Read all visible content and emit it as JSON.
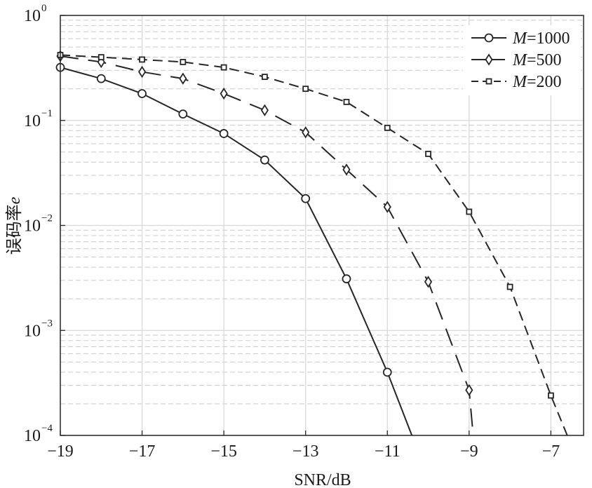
{
  "chart_data": {
    "type": "line",
    "xlabel": "SNR/dB",
    "ylabel_text": "误码率",
    "ylabel_symbol": "e",
    "xlim": [
      -19,
      -6.2
    ],
    "ylim": [
      0.0001,
      1
    ],
    "yscale": "log",
    "grid": true,
    "x_ticks": [
      -19,
      -17,
      -15,
      -13,
      -11,
      -9,
      -7
    ],
    "x_tick_labels": [
      "−19",
      "−17",
      "−15",
      "−13",
      "−11",
      "−9",
      "−7"
    ],
    "y_ticks": [
      1,
      0.1,
      0.01,
      0.001,
      0.0001
    ],
    "y_tick_bases": [
      "10",
      "10",
      "10",
      "10",
      "10"
    ],
    "y_tick_exponents": [
      "0",
      "−1",
      "−2",
      "−3",
      "−4"
    ],
    "legend_position": "top-right",
    "series": [
      {
        "name_symbol": "M",
        "name_value": "=1000",
        "marker": "circle",
        "dash": "solid",
        "x": [
          -19,
          -18,
          -17,
          -16,
          -15,
          -14,
          -13,
          -12,
          -11,
          -10.4
        ],
        "y": [
          0.32,
          0.25,
          0.18,
          0.115,
          0.075,
          0.042,
          0.018,
          0.0031,
          0.0004,
          0.0001
        ],
        "marker_count": 9
      },
      {
        "name_symbol": "M",
        "name_value": "=500",
        "marker": "diamond",
        "dash": "long-dash",
        "x": [
          -19,
          -18,
          -17,
          -16,
          -15,
          -14,
          -13,
          -12,
          -11,
          -10,
          -9,
          -8.9
        ],
        "y": [
          0.41,
          0.36,
          0.29,
          0.25,
          0.18,
          0.125,
          0.077,
          0.034,
          0.015,
          0.0029,
          0.00027,
          0.0001
        ],
        "marker_count": 11
      },
      {
        "name_symbol": "M",
        "name_value": "=200",
        "marker": "square",
        "dash": "dash",
        "x": [
          -19,
          -18,
          -17,
          -16,
          -15,
          -14,
          -13,
          -12,
          -11,
          -10,
          -9,
          -8,
          -7,
          -6.6
        ],
        "y": [
          0.42,
          0.4,
          0.38,
          0.36,
          0.32,
          0.26,
          0.2,
          0.15,
          0.085,
          0.048,
          0.0135,
          0.0026,
          0.00024,
          0.0001
        ],
        "marker_count": 13
      }
    ]
  }
}
